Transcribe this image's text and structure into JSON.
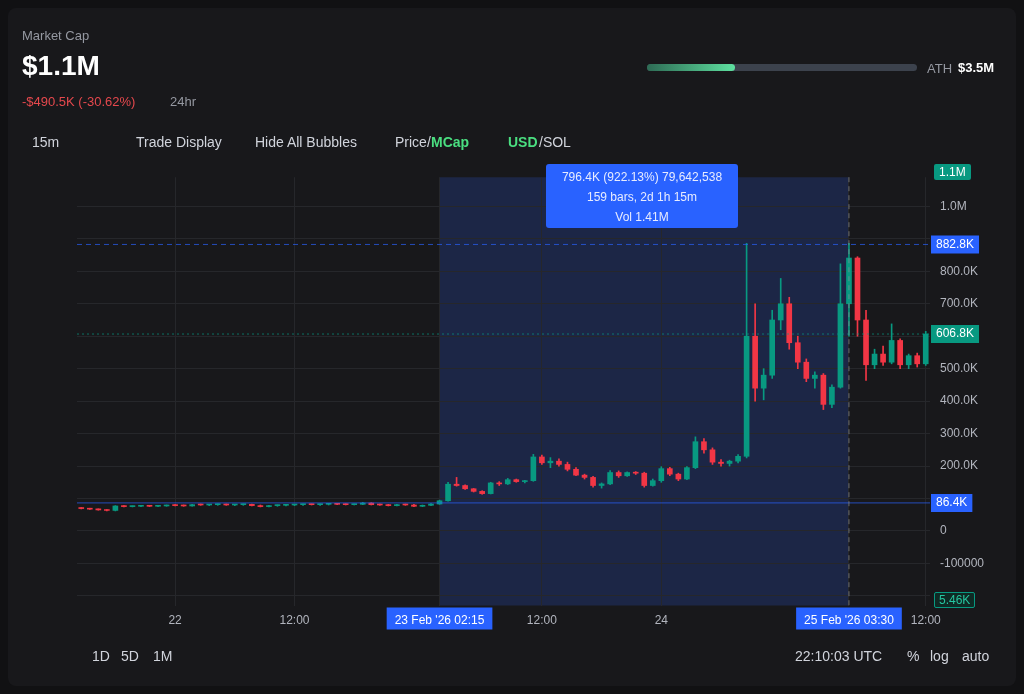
{
  "chart_data": {
    "type": "candlestick",
    "title": "Market Cap",
    "subtitle": "$1.1M",
    "categories": [
      null,
      null,
      null,
      null,
      null,
      null,
      null,
      null,
      null,
      null,
      null,
      "22",
      null,
      null,
      null,
      null,
      null,
      null,
      null,
      null,
      null,
      null,
      null,
      null,
      null,
      "12:00",
      null,
      null,
      null,
      null,
      null,
      null,
      null,
      null,
      null,
      null,
      null,
      null,
      null,
      null,
      null,
      null,
      "23 Feb '26 02:15",
      null,
      null,
      null,
      null,
      null,
      null,
      null,
      null,
      null,
      null,
      null,
      "12:00",
      null,
      null,
      null,
      null,
      null,
      null,
      null,
      null,
      null,
      null,
      null,
      null,
      null,
      "24",
      null,
      null,
      null,
      null,
      null,
      null,
      null,
      null,
      null,
      null,
      null,
      null,
      null,
      null,
      null,
      null,
      null,
      null,
      null,
      null,
      null,
      "25 Feb '26 03:30",
      null,
      null,
      null,
      null,
      null,
      null,
      null,
      null,
      "12:00"
    ],
    "ohlc": [
      [
        70000,
        72000,
        68000,
        69000
      ],
      [
        69000,
        70000,
        66000,
        67000
      ],
      [
        67000,
        68000,
        64000,
        65000
      ],
      [
        65000,
        66000,
        62000,
        63000
      ],
      [
        63000,
        78000,
        62000,
        77000
      ],
      [
        77000,
        78000,
        74000,
        75000
      ],
      [
        75000,
        77000,
        74000,
        76000
      ],
      [
        76000,
        79000,
        75000,
        78000
      ],
      [
        78000,
        79000,
        75000,
        76000
      ],
      [
        76000,
        78000,
        75000,
        77000
      ],
      [
        77000,
        80000,
        76000,
        79000
      ],
      [
        79000,
        81000,
        77000,
        78000
      ],
      [
        78000,
        80000,
        76000,
        77000
      ],
      [
        77000,
        82000,
        76000,
        81000
      ],
      [
        81000,
        83000,
        79000,
        80000
      ],
      [
        80000,
        82000,
        78000,
        81000
      ],
      [
        81000,
        83000,
        79000,
        82000
      ],
      [
        82000,
        83000,
        79000,
        80000
      ],
      [
        80000,
        82000,
        78000,
        81000
      ],
      [
        81000,
        83000,
        79000,
        82000
      ],
      [
        82000,
        83000,
        77000,
        78000
      ],
      [
        78000,
        80000,
        74000,
        75000
      ],
      [
        75000,
        79000,
        74000,
        78000
      ],
      [
        78000,
        80000,
        76000,
        79000
      ],
      [
        79000,
        81000,
        77000,
        80000
      ],
      [
        80000,
        82000,
        78000,
        81000
      ],
      [
        81000,
        83000,
        79000,
        82000
      ],
      [
        82000,
        83000,
        80000,
        81000
      ],
      [
        81000,
        83000,
        79000,
        82000
      ],
      [
        82000,
        84000,
        80000,
        83000
      ],
      [
        83000,
        84000,
        81000,
        82000
      ],
      [
        82000,
        84000,
        80000,
        81000
      ],
      [
        81000,
        83000,
        80000,
        82000
      ],
      [
        82000,
        88000,
        81000,
        86000
      ],
      [
        86000,
        87000,
        80000,
        81000
      ],
      [
        81000,
        83000,
        79000,
        80000
      ],
      [
        80000,
        82000,
        77000,
        78000
      ],
      [
        78000,
        82000,
        77000,
        81000
      ],
      [
        81000,
        83000,
        79000,
        80000
      ],
      [
        80000,
        82000,
        75000,
        76000
      ],
      [
        76000,
        80000,
        75000,
        79000
      ],
      [
        79000,
        84000,
        78000,
        83000
      ],
      [
        83000,
        95000,
        82000,
        93000
      ],
      [
        93000,
        150000,
        92000,
        144000
      ],
      [
        144000,
        165000,
        138000,
        140000
      ],
      [
        140000,
        142000,
        128000,
        130000
      ],
      [
        130000,
        131000,
        120000,
        122000
      ],
      [
        122000,
        124000,
        113000,
        115000
      ],
      [
        115000,
        150000,
        114000,
        148000
      ],
      [
        148000,
        152000,
        140000,
        145000
      ],
      [
        145000,
        162000,
        143000,
        158000
      ],
      [
        158000,
        160000,
        150000,
        152000
      ],
      [
        152000,
        156000,
        148000,
        155000
      ],
      [
        155000,
        236000,
        153000,
        228000
      ],
      [
        228000,
        234000,
        205000,
        210000
      ],
      [
        210000,
        226000,
        195000,
        215000
      ],
      [
        215000,
        222000,
        200000,
        205000
      ],
      [
        205000,
        212000,
        185000,
        190000
      ],
      [
        190000,
        195000,
        170000,
        172000
      ],
      [
        172000,
        175000,
        160000,
        165000
      ],
      [
        165000,
        168000,
        135000,
        140000
      ],
      [
        140000,
        148000,
        132000,
        145000
      ],
      [
        145000,
        186000,
        143000,
        180000
      ],
      [
        180000,
        185000,
        165000,
        170000
      ],
      [
        170000,
        182000,
        168000,
        180000
      ],
      [
        180000,
        183000,
        174000,
        178000
      ],
      [
        178000,
        181000,
        135000,
        140000
      ],
      [
        140000,
        160000,
        138000,
        155000
      ],
      [
        155000,
        198000,
        150000,
        192000
      ],
      [
        192000,
        196000,
        170000,
        175000
      ],
      [
        175000,
        178000,
        155000,
        160000
      ],
      [
        160000,
        198000,
        158000,
        195000
      ],
      [
        195000,
        290000,
        192000,
        275000
      ],
      [
        275000,
        285000,
        240000,
        250000
      ],
      [
        250000,
        256000,
        205000,
        212000
      ],
      [
        212000,
        220000,
        200000,
        208000
      ],
      [
        208000,
        218000,
        200000,
        215000
      ],
      [
        215000,
        235000,
        210000,
        230000
      ],
      [
        230000,
        886000,
        225000,
        600000
      ],
      [
        600000,
        700000,
        400000,
        440000
      ],
      [
        440000,
        500000,
        404000,
        480000
      ],
      [
        480000,
        680000,
        470000,
        650000
      ],
      [
        650000,
        778000,
        620000,
        700000
      ],
      [
        700000,
        720000,
        560000,
        580000
      ],
      [
        580000,
        600000,
        500000,
        520000
      ],
      [
        520000,
        530000,
        460000,
        470000
      ],
      [
        470000,
        490000,
        440000,
        480000
      ],
      [
        480000,
        485000,
        374000,
        390000
      ],
      [
        390000,
        450000,
        380000,
        443000
      ],
      [
        443000,
        823000,
        440000,
        700000
      ],
      [
        700000,
        886000,
        600000,
        841000
      ],
      [
        841000,
        845000,
        600000,
        650000
      ],
      [
        650000,
        680000,
        464000,
        512000
      ],
      [
        512000,
        560000,
        500000,
        545000
      ],
      [
        545000,
        570000,
        510000,
        520000
      ],
      [
        520000,
        638000,
        515000,
        587000
      ],
      [
        587000,
        592000,
        500000,
        512000
      ],
      [
        512000,
        545000,
        500000,
        540000
      ],
      [
        540000,
        548000,
        505000,
        515000
      ],
      [
        515000,
        615000,
        510000,
        606800
      ]
    ],
    "colors": [
      "#f23645",
      "#f23645",
      "#f23645",
      "#f23645",
      "#089981",
      "#f23645",
      "#089981",
      "#089981",
      "#f23645",
      "#089981",
      "#089981",
      "#f23645",
      "#f23645",
      "#089981",
      "#f23645",
      "#089981",
      "#089981",
      "#f23645",
      "#089981",
      "#089981",
      "#f23645",
      "#f23645",
      "#089981",
      "#089981",
      "#089981",
      "#089981",
      "#089981",
      "#f23645",
      "#089981",
      "#089981",
      "#f23645",
      "#f23645",
      "#089981",
      "#089981",
      "#f23645",
      "#f23645",
      "#f23645",
      "#089981",
      "#f23645",
      "#f23645",
      "#089981",
      "#089981",
      "#089981",
      "#089981",
      "#f23645",
      "#f23645",
      "#f23645",
      "#f23645",
      "#089981",
      "#f23645",
      "#089981",
      "#f23645",
      "#089981",
      "#089981",
      "#f23645",
      "#089981",
      "#f23645",
      "#f23645",
      "#f23645",
      "#f23645",
      "#f23645",
      "#089981",
      "#089981",
      "#f23645",
      "#089981",
      "#f23645",
      "#f23645",
      "#089981",
      "#089981",
      "#f23645",
      "#f23645",
      "#089981",
      "#089981",
      "#f23645",
      "#f23645",
      "#f23645",
      "#089981",
      "#089981",
      "#089981",
      "#f23645",
      "#089981",
      "#089981",
      "#089981",
      "#f23645",
      "#f23645",
      "#f23645",
      "#089981",
      "#f23645",
      "#089981",
      "#089981",
      "#089981",
      "#f23645",
      "#f23645",
      "#089981",
      "#f23645",
      "#089981",
      "#f23645",
      "#089981",
      "#f23645",
      "#089981"
    ],
    "ylim": [
      -230000,
      1090000
    ],
    "yticks": [
      {
        "value": -200000,
        "label": null
      },
      {
        "value": -100000,
        "label": "-100000"
      },
      {
        "value": 0,
        "label": "0"
      },
      {
        "value": 100000,
        "label": null
      },
      {
        "value": 200000,
        "label": "200.0K"
      },
      {
        "value": 300000,
        "label": "300.0K"
      },
      {
        "value": 400000,
        "label": "400.0K"
      },
      {
        "value": 500000,
        "label": "500.0K"
      },
      {
        "value": 600000,
        "label": null
      },
      {
        "value": 700000,
        "label": "700.0K"
      },
      {
        "value": 800000,
        "label": "800.0K"
      },
      {
        "value": 900000,
        "label": null
      },
      {
        "value": 1000000,
        "label": "1.0M"
      }
    ],
    "grid": true,
    "ref_lines": [
      {
        "axis": "y",
        "value": 882800,
        "label": "882.8K",
        "color": "#2962ff",
        "line_style": "dashed"
      },
      {
        "axis": "y",
        "value": 606800,
        "label": "606.8K",
        "color": "#089981",
        "line_style": "dotted"
      },
      {
        "axis": "y",
        "value": 86400,
        "label": "86.4K",
        "color": "#2962ff",
        "line_style": "solid"
      },
      {
        "axis": "x",
        "value": "25 Feb '26 03:30",
        "color": "#8a8d96",
        "line_style": "dashed"
      }
    ],
    "bands": [
      {
        "axis": "x",
        "from": "23 Feb '26 02:15",
        "to": "25 Feb '26 03:30",
        "color": "#1c2646"
      }
    ],
    "annotations": [
      "-$490.5K (-30.62%)",
      "24hr",
      "ATH",
      "$3.5M",
      "15m",
      "Trade Display",
      "Hide All Bubbles",
      "Price/",
      "MCap",
      "USD",
      "/SOL",
      "796.4K (922.13%) 79,642,538",
      "159 bars, 2d 1h 15m",
      "Vol 1.41M",
      "1.1M",
      "5.46K",
      "1D",
      "5D",
      "1M",
      "22:10:03 UTC",
      "%",
      "log",
      "auto"
    ]
  }
}
